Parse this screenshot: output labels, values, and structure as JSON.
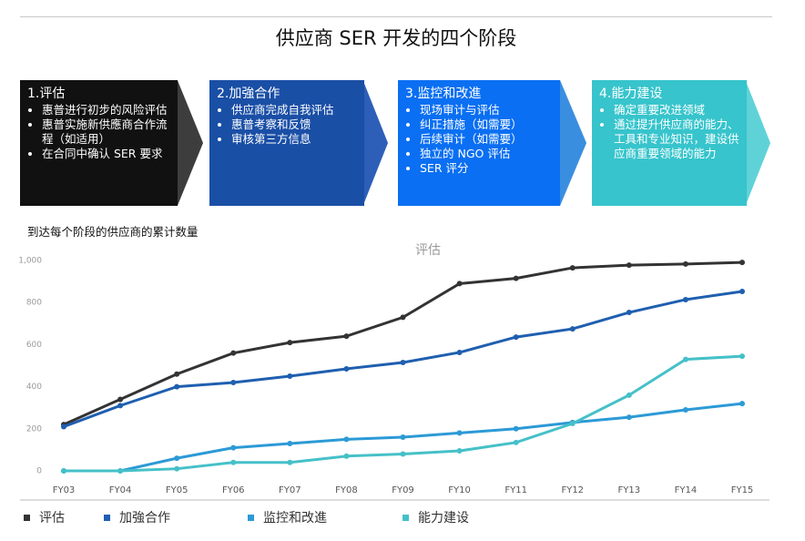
{
  "header": {
    "title": "供应商 SER 开发的四个阶段"
  },
  "stages": [
    {
      "title": "1.评估",
      "color": "#111111",
      "tip": "#3d3d3d",
      "bullets": [
        "惠普进行初步的风险评估",
        "惠普实施新供應商合作流程（如适用）",
        "在合同中确认 SER 要求"
      ]
    },
    {
      "title": "2.加強合作",
      "color": "#1a4fa6",
      "tip": "#2d5fb8",
      "bullets": [
        "供应商完成自我评估",
        "惠普考察和反馈",
        "审核第三方信息"
      ]
    },
    {
      "title": "3.监控和改進",
      "color": "#0a6ff2",
      "tip": "#3a8ee0",
      "bullets": [
        "现场审计与评估",
        "纠正措施（如需要）",
        "后续审计（如需要）",
        "独立的 NGO 评估",
        "SER 评分"
      ]
    },
    {
      "title": "4.能力建设",
      "color": "#37c4cc",
      "tip": "#5fd2d8",
      "bullets": [
        "确定重要改进领域",
        "通过提升供应商的能力、工具和专业知识，建设供应商重要领域的能力"
      ]
    }
  ],
  "chart_data": {
    "type": "line",
    "subtitle": "到达每个阶段的供应商的累计数量",
    "title": "评估",
    "categories": [
      "FY03",
      "FY04",
      "FY05",
      "FY06",
      "FY07",
      "FY08",
      "FY09",
      "FY10",
      "FY11",
      "FY12",
      "FY13",
      "FY14",
      "FY15"
    ],
    "series": [
      {
        "name": "评估",
        "color": "#333333",
        "values": [
          220,
          340,
          460,
          560,
          610,
          640,
          730,
          890,
          915,
          965,
          978,
          983,
          991
        ]
      },
      {
        "name": "加強合作",
        "color": "#1f5fb0",
        "values": [
          210,
          310,
          400,
          420,
          450,
          485,
          515,
          563,
          636,
          675,
          753,
          814,
          853
        ]
      },
      {
        "name": "监控和改進",
        "color": "#2c9ad6",
        "values": [
          0,
          0,
          60,
          110,
          130,
          150,
          160,
          180,
          200,
          230,
          255,
          290,
          320
        ]
      },
      {
        "name": "能力建设",
        "color": "#45c0c8",
        "values": [
          0,
          0,
          10,
          40,
          40,
          70,
          80,
          95,
          135,
          225,
          360,
          530,
          545
        ]
      }
    ],
    "ylim": [
      0,
      1000
    ],
    "yticks": [
      0,
      200,
      400,
      600,
      800,
      {
        "value": 1000,
        "label": "1,000"
      }
    ],
    "grid": false
  }
}
